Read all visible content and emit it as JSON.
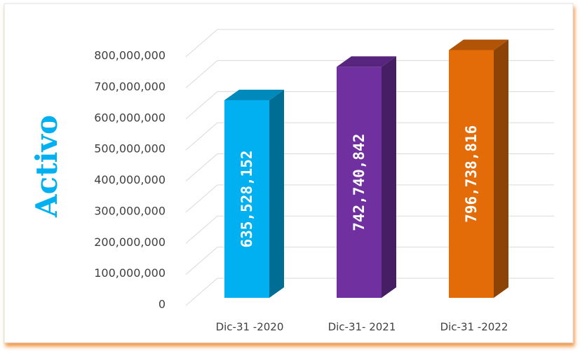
{
  "chart_data": {
    "type": "bar3d",
    "y_axis_label": "Activo",
    "categories": [
      "Dic-31 -2020",
      "Dic-31- 2021",
      "Dic-31 -2022"
    ],
    "values": [
      635528152,
      742740842,
      796738816
    ],
    "value_labels": [
      "635,528,152",
      "742,740,842",
      "796,738,816"
    ],
    "colors": [
      "#00b0f0",
      "#7030a0",
      "#e36c09"
    ],
    "ylim": [
      0,
      800000000
    ],
    "yticks": [
      0,
      {
        "value": 100000000,
        "label": "100,000,000"
      },
      {
        "value": 200000000,
        "label": "200,000,000"
      },
      {
        "value": 300000000,
        "label": "300,000,000"
      },
      {
        "value": 400000000,
        "label": "400,000,000"
      },
      {
        "value": 500000000,
        "label": "500,000,000"
      },
      {
        "value": 600000000,
        "label": "600,000,000"
      },
      {
        "value": 700000000,
        "label": "700,000,000"
      },
      {
        "value": 800000000,
        "label": "800,000,000"
      }
    ],
    "grid": true
  }
}
